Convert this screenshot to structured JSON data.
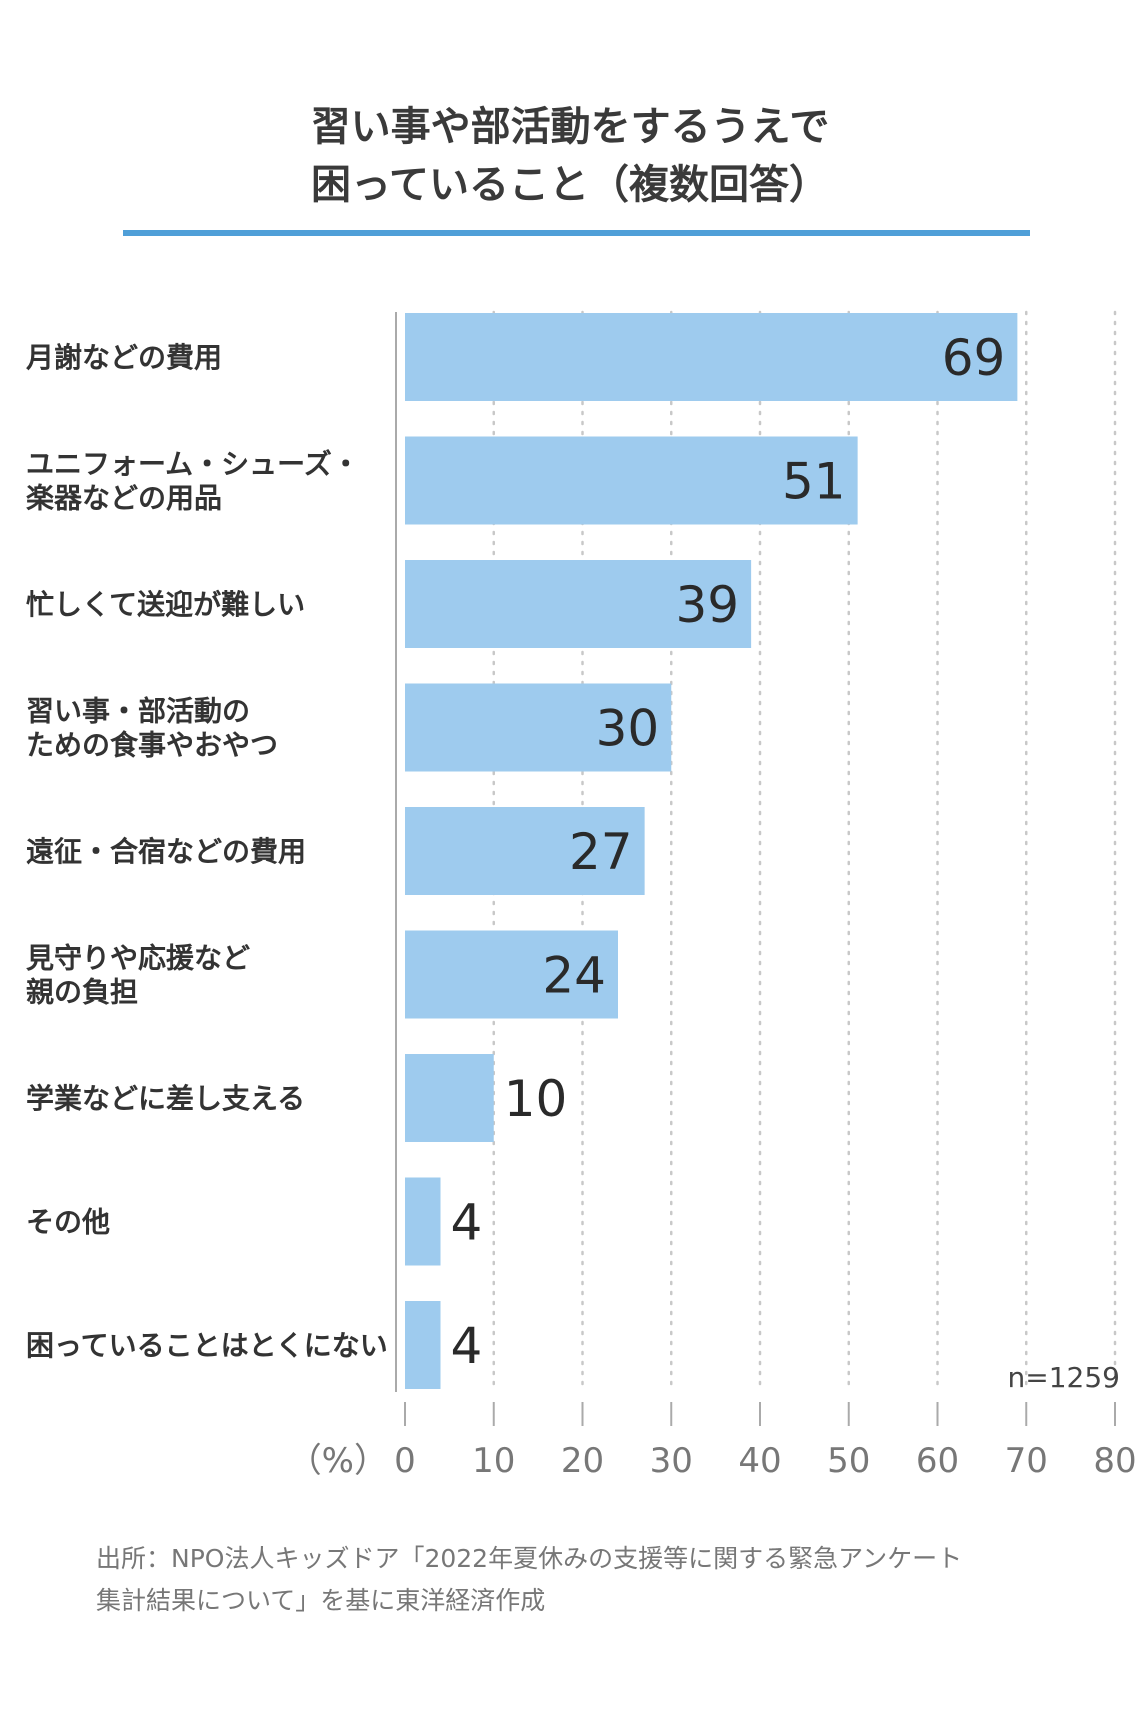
{
  "title_lines": [
    "習い事や部活動をするうえで",
    "困っていること（複数回答）"
  ],
  "note_lines": [
    "出所：NPO法人キッズドア「2022年夏休みの支援等に関する緊急アンケート",
    "集計結果について」を基に東洋経済作成"
  ],
  "chart_data": {
    "type": "bar",
    "orientation": "horizontal",
    "title": "習い事や部活動をするうえで困っていること（複数回答）",
    "categories": [
      "月謝などの費用",
      "ユニフォーム・シューズ・楽器などの用品",
      "忙しくて送迎が難しい",
      "習い事・部活動のための食事やおやつ",
      "遠征・合宿などの費用",
      "見守りや応援など親の負担",
      "学業などに差し支える",
      "その他",
      "困っていることはとくにない"
    ],
    "category_lines": [
      [
        "月謝などの費用"
      ],
      [
        "ユニフォーム・シューズ・",
        "楽器などの用品"
      ],
      [
        "忙しくて送迎が難しい"
      ],
      [
        "習い事・部活動の",
        "ための食事やおやつ"
      ],
      [
        "遠征・合宿などの費用"
      ],
      [
        "見守りや応援など",
        "親の負担"
      ],
      [
        "学業などに差し支える"
      ],
      [
        "その他"
      ],
      [
        "困っていることはとくにない"
      ]
    ],
    "values": [
      69,
      51,
      39,
      30,
      27,
      24,
      10,
      4,
      4
    ],
    "value_labels": [
      "69",
      "51",
      "39",
      "30",
      "27",
      "24",
      "10",
      "4",
      "4"
    ],
    "xlim": [
      0,
      80
    ],
    "x_ticks": [
      0,
      10,
      20,
      30,
      40,
      50,
      60,
      70,
      80
    ],
    "x_tick_labels": [
      "0",
      "10",
      "20",
      "30",
      "40",
      "50",
      "60",
      "70",
      "80"
    ],
    "x_unit_label": "（%）",
    "sample_size": "n=1259",
    "grid": "vertical dotted",
    "bar_color": "#9ecbee",
    "grid_color": "#c8c8c8"
  }
}
